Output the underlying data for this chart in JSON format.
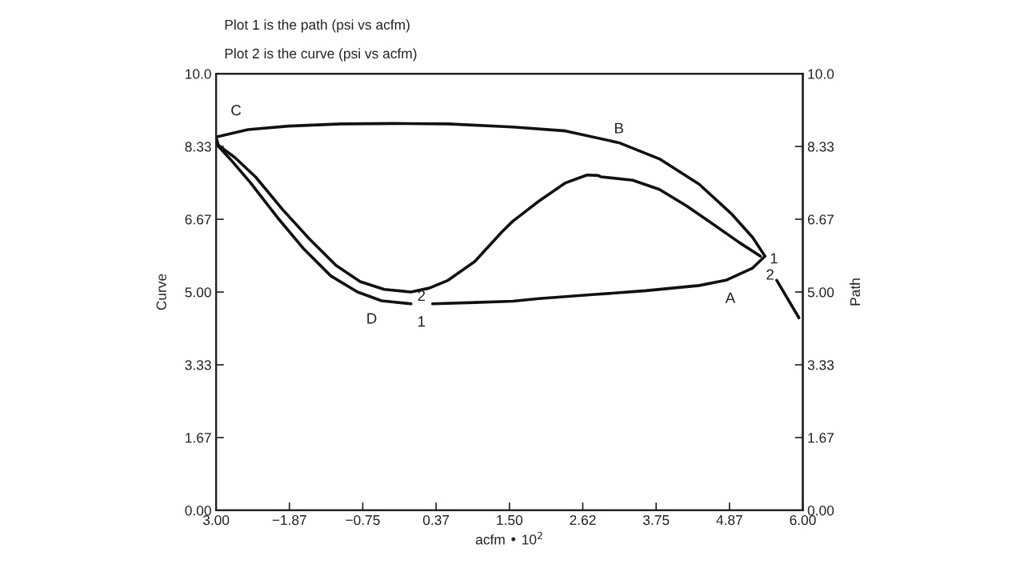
{
  "chart_data": {
    "type": "line",
    "title": "Plot 1 is the path (psi vs acfm)",
    "subtitle": "Plot 2 is the curve (psi vs acfm)",
    "xlabel": "acfm • 10$^{2}$",
    "ylabel": "Curve",
    "y2label": "Path",
    "xlim": [
      -3.0,
      6.0
    ],
    "xticks": [
      {
        "value": -3.0,
        "label": "3.00"
      },
      {
        "value": -1.875,
        "label": "−1.87"
      },
      {
        "value": -0.75,
        "label": "−0.75"
      },
      {
        "value": 0.375,
        "label": "0.37"
      },
      {
        "value": 1.5,
        "label": "1.50"
      },
      {
        "value": 2.625,
        "label": "2.62"
      },
      {
        "value": 3.75,
        "label": "3.75"
      },
      {
        "value": 4.875,
        "label": "4.87"
      },
      {
        "value": 6.0,
        "label": "6.00"
      }
    ],
    "ylim": [
      0,
      10
    ],
    "yticks": [
      {
        "value": 0,
        "label": "0.00"
      },
      {
        "value": 1.667,
        "label": "1.67"
      },
      {
        "value": 3.333,
        "label": "3.33"
      },
      {
        "value": 5,
        "label": "5.00"
      },
      {
        "value": 6.667,
        "label": "6.67"
      },
      {
        "value": 8.333,
        "label": "8.33"
      },
      {
        "value": 10,
        "label": "10.0"
      }
    ],
    "y2lim": [
      0,
      10
    ],
    "y2ticks": [
      {
        "value": 0,
        "label": "0.00"
      },
      {
        "value": 1.667,
        "label": "1.67"
      },
      {
        "value": 3.333,
        "label": "3.33"
      },
      {
        "value": 5,
        "label": "5.00"
      },
      {
        "value": 6.667,
        "label": "6.67"
      },
      {
        "value": 8.333,
        "label": "8.33"
      },
      {
        "value": 10,
        "label": "10.0"
      }
    ],
    "series": [
      {
        "axis": "y2",
        "color": "#111111",
        "x": [
          0.32,
          0.97,
          1.55,
          1.95,
          2.77,
          3.59,
          4.41,
          4.82,
          5.23,
          5.42,
          5.23,
          4.9,
          4.41,
          3.8,
          3.18,
          2.36,
          1.55,
          0.56,
          -0.26,
          -1.08,
          -1.89,
          -2.51,
          -3.0,
          -2.96,
          -2.75,
          -2.47,
          -2.06,
          -1.65,
          -1.24,
          -0.83,
          -0.46,
          -0.01
        ],
        "values": [
          4.73,
          4.76,
          4.79,
          4.85,
          4.94,
          5.03,
          5.15,
          5.27,
          5.55,
          5.82,
          6.25,
          6.8,
          7.47,
          8.05,
          8.42,
          8.69,
          8.78,
          8.85,
          8.86,
          8.85,
          8.8,
          8.72,
          8.55,
          8.33,
          7.99,
          7.5,
          6.71,
          5.98,
          5.37,
          5.0,
          4.8,
          4.73
        ]
      },
      {
        "axis": "y",
        "color": "#111111",
        "x": [
          -3.0,
          -2.71,
          -2.39,
          -1.98,
          -1.57,
          -1.16,
          -0.79,
          -0.42,
          -0.01,
          0.27,
          0.56,
          0.97,
          1.38,
          1.55,
          1.95,
          2.36,
          2.69,
          2.86,
          2.9,
          3.39,
          3.8,
          4.21,
          4.62,
          5.03,
          5.35,
          5.45,
          5.6,
          5.94
        ],
        "values": [
          8.4,
          8.08,
          7.63,
          6.89,
          6.22,
          5.61,
          5.24,
          5.06,
          5.0,
          5.09,
          5.27,
          5.7,
          6.37,
          6.62,
          7.08,
          7.5,
          7.68,
          7.67,
          7.64,
          7.56,
          7.35,
          6.98,
          6.56,
          6.13,
          5.82,
          null,
          5.27,
          4.41
        ]
      }
    ],
    "annotations": [
      {
        "text": "C",
        "x": -3.0,
        "y": 8.55
      },
      {
        "text": "B",
        "x": 3.18,
        "y": 8.42
      },
      {
        "text": "A",
        "x": 4.82,
        "y": 5.27
      },
      {
        "text": "D",
        "x": -0.46,
        "y": 4.8
      },
      {
        "text": "1",
        "x": 0.32,
        "y": 4.73
      },
      {
        "text": "2",
        "x": 0.27,
        "y": 5.09
      },
      {
        "text": "1",
        "x": 5.42,
        "y": 5.82
      },
      {
        "text": "2",
        "x": 5.6,
        "y": 5.27
      }
    ]
  }
}
